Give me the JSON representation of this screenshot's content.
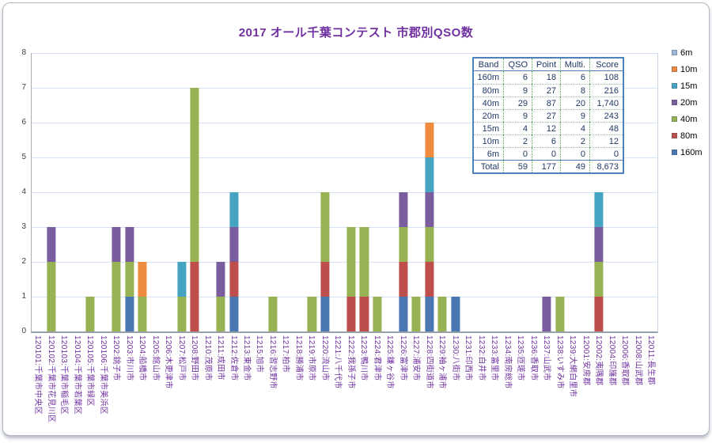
{
  "chart_data": {
    "type": "bar",
    "stacked": true,
    "title": "2017 オール千葉コンテスト 市郡別QSO数",
    "xlabel": "",
    "ylabel": "",
    "ylim": [
      0,
      8
    ],
    "y_ticks": [
      0,
      1,
      2,
      3,
      4,
      5,
      6,
      7,
      8
    ],
    "grid": true,
    "legend_position": "right",
    "categories": [
      "120101:千葉市中央区",
      "120102:千葉市花見川区",
      "120103:千葉市稲毛区",
      "120104:千葉市若葉区",
      "120105:千葉市緑区",
      "120106:千葉市美浜区",
      "1202:銚子市",
      "1203:市川市",
      "1204:船橋市",
      "1205:館山市",
      "1206:木更津市",
      "1207:松戸市",
      "1208:野田市",
      "1210:茂原市",
      "1211:成田市",
      "1212:佐倉市",
      "1213:東金市",
      "1215:旭市",
      "1216:習志野市",
      "1217:柏市",
      "1218:勝浦市",
      "1219:市原市",
      "1220:流山市",
      "1221:八千代市",
      "1222:我孫子市",
      "1223:鴨川市",
      "1224:君津市",
      "1225:鎌ヶ谷市",
      "1226:富津市",
      "1227:浦安市",
      "1228:四街道市",
      "1229:袖ヶ浦市",
      "1230:八街市",
      "1231:印西市",
      "1232:白井市",
      "1233:富里市",
      "1234:南房総市",
      "1235:匝瑳市",
      "1236:香取市",
      "1237:山武市",
      "1238:いすみ市",
      "1239:大網白里市",
      "12001:安房郡",
      "12002:夷隅郡",
      "12004:印旛郡",
      "12006:香取郡",
      "12008:山武郡",
      "12011:長生郡"
    ],
    "series": [
      {
        "name": "160m",
        "color": "#4A77B2",
        "values": [
          0,
          0,
          0,
          0,
          0,
          0,
          0,
          1,
          0,
          0,
          0,
          0,
          0,
          0,
          0,
          1,
          0,
          0,
          0,
          0,
          0,
          0,
          1,
          0,
          0,
          0,
          0,
          0,
          1,
          0,
          1,
          0,
          1,
          0,
          0,
          0,
          0,
          0,
          0,
          0,
          0,
          0,
          0,
          0,
          0,
          0,
          0,
          0
        ]
      },
      {
        "name": "80m",
        "color": "#BE4E4B",
        "values": [
          0,
          0,
          0,
          0,
          0,
          0,
          0,
          0,
          0,
          0,
          0,
          0,
          2,
          0,
          0,
          1,
          0,
          0,
          0,
          0,
          0,
          0,
          1,
          0,
          1,
          1,
          0,
          0,
          1,
          0,
          1,
          0,
          0,
          0,
          0,
          0,
          0,
          0,
          0,
          0,
          0,
          0,
          0,
          1,
          0,
          0,
          0,
          0
        ]
      },
      {
        "name": "40m",
        "color": "#96B253",
        "values": [
          0,
          2,
          0,
          0,
          1,
          0,
          2,
          1,
          1,
          0,
          0,
          1,
          5,
          0,
          1,
          0,
          0,
          0,
          1,
          0,
          0,
          1,
          2,
          0,
          2,
          2,
          1,
          0,
          1,
          1,
          1,
          1,
          0,
          0,
          0,
          0,
          0,
          0,
          0,
          0,
          1,
          0,
          0,
          1,
          0,
          0,
          0,
          0
        ]
      },
      {
        "name": "20m",
        "color": "#7A5D9E",
        "values": [
          0,
          1,
          0,
          0,
          0,
          0,
          1,
          1,
          0,
          0,
          0,
          0,
          0,
          0,
          1,
          1,
          0,
          0,
          0,
          0,
          0,
          0,
          0,
          0,
          0,
          0,
          0,
          0,
          1,
          0,
          1,
          0,
          0,
          0,
          0,
          0,
          0,
          0,
          0,
          1,
          0,
          0,
          0,
          1,
          0,
          0,
          0,
          0
        ]
      },
      {
        "name": "15m",
        "color": "#44A4C2",
        "values": [
          0,
          0,
          0,
          0,
          0,
          0,
          0,
          0,
          0,
          0,
          0,
          1,
          0,
          0,
          0,
          1,
          0,
          0,
          0,
          0,
          0,
          0,
          0,
          0,
          0,
          0,
          0,
          0,
          0,
          0,
          1,
          0,
          0,
          0,
          0,
          0,
          0,
          0,
          0,
          0,
          0,
          0,
          0,
          1,
          0,
          0,
          0,
          0
        ]
      },
      {
        "name": "10m",
        "color": "#EF8B3E",
        "values": [
          0,
          0,
          0,
          0,
          0,
          0,
          0,
          0,
          1,
          0,
          0,
          0,
          0,
          0,
          0,
          0,
          0,
          0,
          0,
          0,
          0,
          0,
          0,
          0,
          0,
          0,
          0,
          0,
          0,
          0,
          1,
          0,
          0,
          0,
          0,
          0,
          0,
          0,
          0,
          0,
          0,
          0,
          0,
          0,
          0,
          0,
          0,
          0
        ]
      },
      {
        "name": "6m",
        "color": "#9FB5D8",
        "values": [
          0,
          0,
          0,
          0,
          0,
          0,
          0,
          0,
          0,
          0,
          0,
          0,
          0,
          0,
          0,
          0,
          0,
          0,
          0,
          0,
          0,
          0,
          0,
          0,
          0,
          0,
          0,
          0,
          0,
          0,
          0,
          0,
          0,
          0,
          0,
          0,
          0,
          0,
          0,
          0,
          0,
          0,
          0,
          0,
          0,
          0,
          0,
          0
        ]
      }
    ]
  },
  "legend": {
    "items": [
      {
        "label": "6m",
        "color": "#9FB5D8"
      },
      {
        "label": "10m",
        "color": "#EF8B3E"
      },
      {
        "label": "15m",
        "color": "#44A4C2"
      },
      {
        "label": "20m",
        "color": "#7A5D9E"
      },
      {
        "label": "40m",
        "color": "#96B253"
      },
      {
        "label": "80m",
        "color": "#BE4E4B"
      },
      {
        "label": "160m",
        "color": "#4A77B2"
      }
    ]
  },
  "table": {
    "headers": [
      "Band",
      "QSO",
      "Point",
      "Multi.",
      "Score"
    ],
    "rows": [
      [
        "160m",
        "6",
        "18",
        "6",
        "108"
      ],
      [
        "80m",
        "9",
        "27",
        "8",
        "216"
      ],
      [
        "40m",
        "29",
        "87",
        "20",
        "1,740"
      ],
      [
        "20m",
        "9",
        "27",
        "9",
        "243"
      ],
      [
        "15m",
        "4",
        "12",
        "4",
        "48"
      ],
      [
        "10m",
        "2",
        "6",
        "2",
        "12"
      ],
      [
        "6m",
        "0",
        "0",
        "0",
        "0"
      ]
    ],
    "total": [
      "Total",
      "59",
      "177",
      "49",
      "8,673"
    ]
  },
  "style": {
    "title_color": "#7030A0",
    "x_label_color": "#7030A0",
    "y_label_color": "#3F3F3F",
    "gridline_color": "#D5E3F2"
  }
}
